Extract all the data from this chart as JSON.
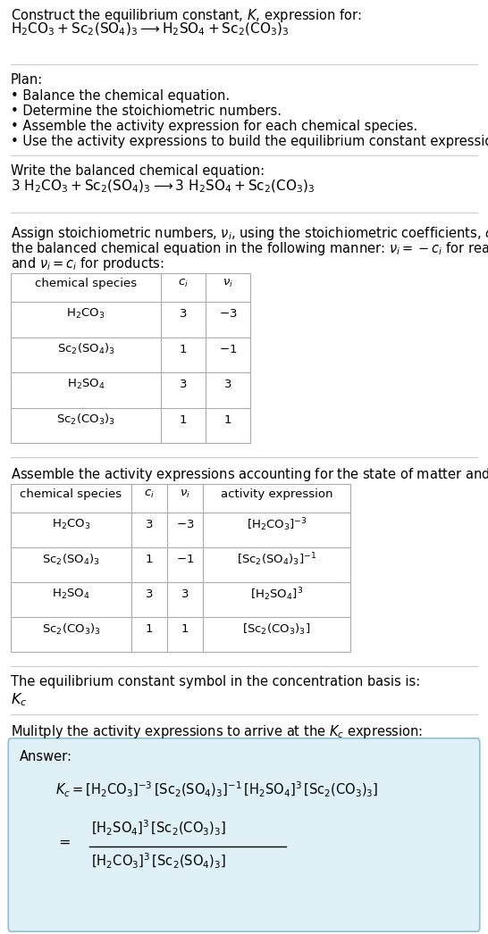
{
  "bg_color": "#ffffff",
  "answer_bg_color": "#dff0f7",
  "answer_border_color": "#90bfd4",
  "text_color": "#000000",
  "line_color": "#cccccc",
  "table_line_color": "#aaaaaa",
  "fig_width": 5.46,
  "fig_height": 10.46,
  "dpi": 100
}
